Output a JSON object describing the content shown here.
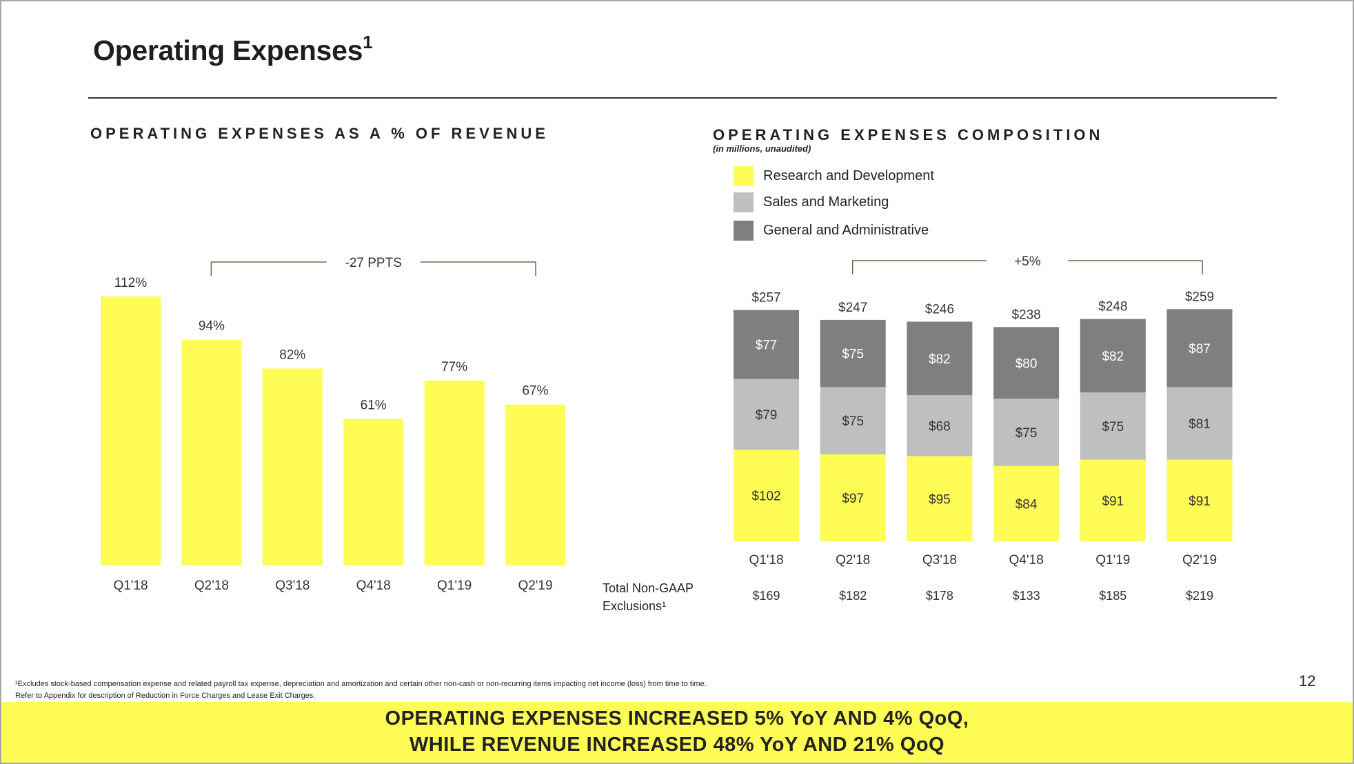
{
  "title": "Operating Expenses",
  "title_sup": "1",
  "page_number": "12",
  "colors": {
    "yellow": "#fffc55",
    "light_gray": "#bfbfbf",
    "dark_gray": "#7f7f7f",
    "bracket": "#6b6b4b"
  },
  "left_section_title": "OPERATING EXPENSES AS A % OF REVENUE",
  "right_section_title": "OPERATING EXPENSES COMPOSITION",
  "right_subnote": "(in millions, unaudited)",
  "legend": [
    {
      "label": "Research and Development",
      "color": "#fffc55"
    },
    {
      "label": "Sales and Marketing",
      "color": "#bfbfbf"
    },
    {
      "label": "General and Administrative",
      "color": "#7f7f7f"
    }
  ],
  "exclusions_label_line1": "Total Non-GAAP",
  "exclusions_label_line2": "Exclusions¹",
  "footnote_line1": "¹Excludes stock-based compensation expense and related payroll tax expense, depreciation and amortization and certain other non-cash or non-recurring items impacting net income (loss) from time to time.",
  "footnote_line2": "Refer to Appendix for description of Reduction in Force Charges and Lease Exit Charges.",
  "banner_line1": "OPERATING EXPENSES INCREASED 5% YoY AND 4% QoQ,",
  "banner_line2": "WHILE REVENUE INCREASED 48% YoY AND 21% QoQ",
  "chart_data": [
    {
      "type": "bar",
      "title": "OPERATING EXPENSES AS A % OF REVENUE",
      "categories": [
        "Q1'18",
        "Q2'18",
        "Q3'18",
        "Q4'18",
        "Q1'19",
        "Q2'19"
      ],
      "values": [
        112,
        94,
        82,
        61,
        77,
        67
      ],
      "value_labels": [
        "112%",
        "94%",
        "82%",
        "61%",
        "77%",
        "67%"
      ],
      "ylim": [
        0,
        112
      ],
      "annotation": {
        "text": "-27 PPTS",
        "from": "Q2'18",
        "to": "Q2'19"
      }
    },
    {
      "type": "bar",
      "stacked": true,
      "title": "OPERATING EXPENSES COMPOSITION",
      "subtitle": "(in millions, unaudited)",
      "categories": [
        "Q1'18",
        "Q2'18",
        "Q3'18",
        "Q4'18",
        "Q1'19",
        "Q2'19"
      ],
      "series": [
        {
          "name": "Research and Development",
          "values": [
            102,
            97,
            95,
            84,
            91,
            91
          ],
          "labels": [
            "$102",
            "$97",
            "$95",
            "$84",
            "$91",
            "$91"
          ],
          "color": "#fffc55"
        },
        {
          "name": "Sales and Marketing",
          "values": [
            79,
            75,
            68,
            75,
            75,
            81
          ],
          "labels": [
            "$79",
            "$75",
            "$68",
            "$75",
            "$75",
            "$81"
          ],
          "color": "#bfbfbf"
        },
        {
          "name": "General and Administrative",
          "values": [
            77,
            75,
            82,
            80,
            82,
            87
          ],
          "labels": [
            "$77",
            "$75",
            "$82",
            "$80",
            "$82",
            "$87"
          ],
          "color": "#7f7f7f"
        }
      ],
      "totals": [
        257,
        247,
        246,
        238,
        248,
        259
      ],
      "total_labels": [
        "$257",
        "$247",
        "$246",
        "$238",
        "$248",
        "$259"
      ],
      "exclusions": [
        "$169",
        "$182",
        "$178",
        "$133",
        "$185",
        "$219"
      ],
      "annotation": {
        "text": "+5%",
        "from": "Q2'18",
        "to": "Q2'19"
      }
    }
  ]
}
